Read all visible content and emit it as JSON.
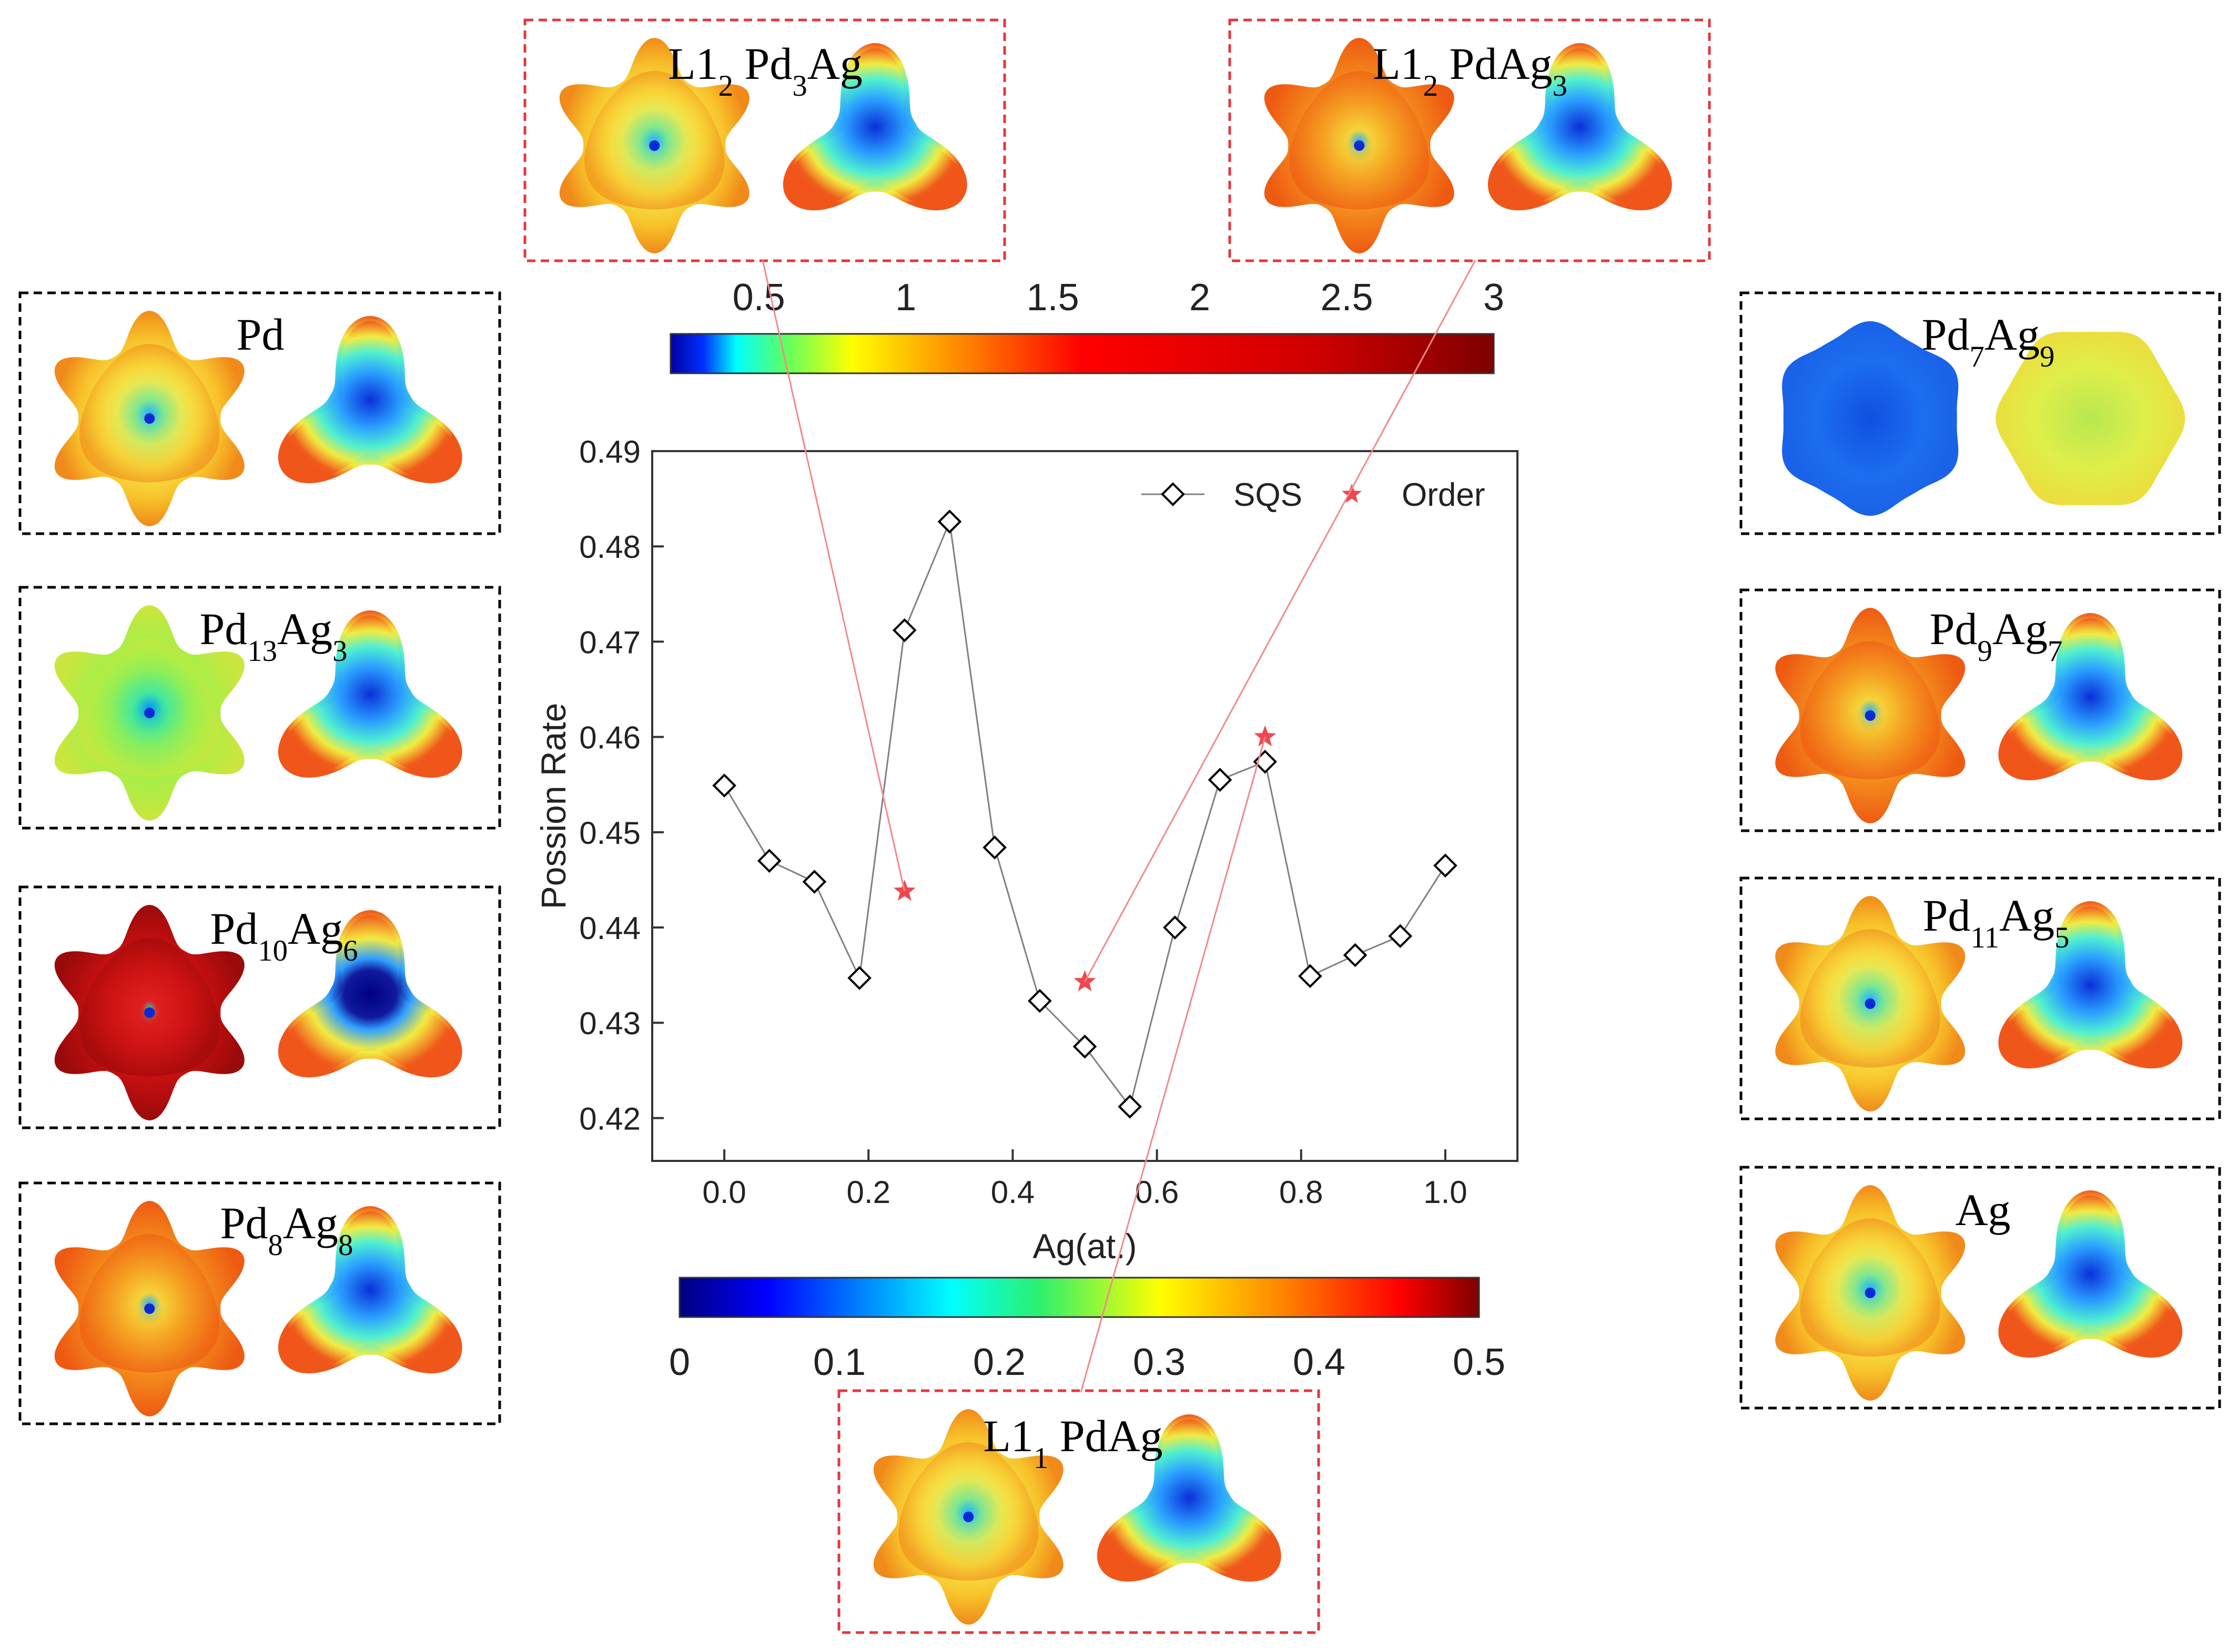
{
  "panels": [
    {
      "id": "pd",
      "name": "Pd",
      "base": "Pd",
      "sub": ""
    },
    {
      "id": "pd13ag3",
      "name": "Pd13Ag3",
      "base": "Pd",
      "sub": "13",
      "base2": "Ag",
      "sub2": "3"
    },
    {
      "id": "pd10ag6",
      "name": "Pd10Ag6",
      "base": "Pd",
      "sub": "10",
      "base2": "Ag",
      "sub2": "6"
    },
    {
      "id": "pd8ag8",
      "name": "Pd8Ag8",
      "base": "Pd",
      "sub": "8",
      "base2": "Ag",
      "sub2": "8"
    },
    {
      "id": "pd7ag9",
      "name": "Pd7Ag9",
      "base": "Pd",
      "sub": "7",
      "base2": "Ag",
      "sub2": "9"
    },
    {
      "id": "pd9ag7",
      "name": "Pd9Ag7",
      "base": "Pd",
      "sub": "9",
      "base2": "Ag",
      "sub2": "7"
    },
    {
      "id": "pd11ag5",
      "name": "Pd11Ag5",
      "base": "Pd",
      "sub": "11",
      "base2": "Ag",
      "sub2": "5"
    },
    {
      "id": "ag",
      "name": "Ag",
      "base": "Ag",
      "sub": ""
    },
    {
      "id": "l12pd3ag",
      "name": "L12 Pd3Ag",
      "base": "L1",
      "sub": "2",
      "base2": " Pd",
      "sub2": "3",
      "base3": "Ag"
    },
    {
      "id": "l12pdag3",
      "name": "L12 PdAg3",
      "base": "L1",
      "sub": "2",
      "base2": " PdAg",
      "sub2": "3"
    },
    {
      "id": "l11pdag",
      "name": "L11 PdAg",
      "base": "L1",
      "sub": "1",
      "base2": " PdAg",
      "sub2": ""
    }
  ],
  "colorbars": {
    "top": {
      "ticks": [
        "0.5",
        "1",
        "1.5",
        "2",
        "2.5",
        "3"
      ],
      "range": [
        0.2,
        3.0
      ]
    },
    "bottom": {
      "ticks": [
        "0",
        "0.1",
        "0.2",
        "0.3",
        "0.4",
        "0.5"
      ],
      "range": [
        0,
        0.5
      ]
    }
  },
  "colors": {
    "dashed_black": "#000000",
    "dashed_red": "#e8353a",
    "order_star": "#f0474f",
    "sqs_line": "#808080"
  },
  "chart_data": {
    "type": "line",
    "title": "",
    "xlabel": "Ag(at.)",
    "ylabel": "Possion Rate",
    "xlim": [
      -0.1,
      1.1
    ],
    "ylim": [
      0.4155,
      0.49
    ],
    "xticks": [
      "0.0",
      "0.2",
      "0.4",
      "0.6",
      "0.8",
      "1.0"
    ],
    "yticks": [
      "0.42",
      "0.43",
      "0.44",
      "0.45",
      "0.46",
      "0.47",
      "0.48",
      "0.49"
    ],
    "legend": {
      "position": "top-right",
      "entries": [
        "SQS",
        "Order"
      ]
    },
    "series": [
      {
        "name": "SQS",
        "marker": "diamond",
        "x": [
          0.0,
          0.0625,
          0.125,
          0.1875,
          0.25,
          0.3125,
          0.375,
          0.4375,
          0.5,
          0.5625,
          0.625,
          0.6875,
          0.75,
          0.8125,
          0.875,
          0.9375,
          1.0
        ],
        "y": [
          0.4549,
          0.447,
          0.4448,
          0.4347,
          0.4712,
          0.4826,
          0.4484,
          0.4323,
          0.4275,
          0.4212,
          0.44,
          0.4555,
          0.4574,
          0.4349,
          0.4371,
          0.4391,
          0.4465
        ]
      },
      {
        "name": "Order",
        "marker": "star",
        "x": [
          0.25,
          0.5,
          0.75
        ],
        "y": [
          0.4438,
          0.4343,
          0.46
        ]
      }
    ]
  }
}
